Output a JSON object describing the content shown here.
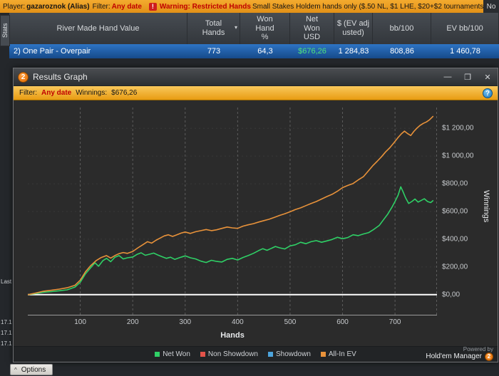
{
  "top_bar": {
    "player_label": "Player:",
    "player_name": "gazaroznok (Alias)",
    "filter_label": "Filter:",
    "filter_value": "Any date",
    "warning_icon": "!",
    "warning_title": "Warning: Restricted Hands",
    "warning_text": "Small Stakes Holdem hands only ($.50 NL, $1 LHE, $20+$2 tournaments).  No",
    "corner_text": "No"
  },
  "left_rail": {
    "stats_tab": "Stats",
    "last_label": "Last",
    "log_items": [
      "17.1",
      "17.1",
      "17.1"
    ]
  },
  "table": {
    "columns": [
      "River Made Hand Value",
      "Total Hands",
      "Won Hand %",
      "Net Won USD",
      "$ (EV adjusted)",
      "bb/100",
      "EV bb/100"
    ],
    "sort_icon": "▾",
    "selected_row": {
      "label": "2) One Pair - Overpair",
      "total_hands": "773",
      "won_hand_pct": "64,3",
      "net_won_usd": "$676,26",
      "ev_adjusted": "1 284,83",
      "bb_100": "808,86",
      "ev_bb_100": "1 460,78"
    }
  },
  "window": {
    "title": "Results Graph",
    "logo": "2",
    "buttons": {
      "minimize": "—",
      "maximize": "❒",
      "close": "✕"
    },
    "filter_bar": {
      "filter_label": "Filter:",
      "filter_value": "Any date",
      "winnings_label": "Winnings:",
      "winnings_value": "$676,26",
      "help": "?"
    },
    "footer": {
      "powered_by": "Powered by",
      "brand": "Hold'em Manager",
      "brand_logo": "2"
    }
  },
  "bottom_bar": {
    "collapse": "^",
    "options_label": "Options"
  },
  "chart_data": {
    "type": "line",
    "xlabel": "Hands",
    "ylabel": "Winnings",
    "xlim": [
      0,
      780
    ],
    "ylim": [
      -150,
      1350
    ],
    "x_ticks": [
      100,
      200,
      300,
      400,
      500,
      600,
      700
    ],
    "y_ticks": [
      0,
      200,
      400,
      600,
      800,
      1000,
      1200
    ],
    "y_tick_labels": [
      "$0,00",
      "$200,00",
      "$400,00",
      "$600,00",
      "$800,00",
      "$1 000,00",
      "$1 200,00"
    ],
    "grid": true,
    "legend_position": "bottom",
    "series": [
      {
        "name": "Net Won",
        "color": "#2fd066",
        "points": [
          [
            0,
            0
          ],
          [
            15,
            8
          ],
          [
            30,
            18
          ],
          [
            45,
            22
          ],
          [
            60,
            28
          ],
          [
            75,
            35
          ],
          [
            90,
            55
          ],
          [
            100,
            90
          ],
          [
            110,
            150
          ],
          [
            120,
            195
          ],
          [
            128,
            230
          ],
          [
            135,
            205
          ],
          [
            143,
            245
          ],
          [
            150,
            262
          ],
          [
            158,
            238
          ],
          [
            166,
            270
          ],
          [
            174,
            282
          ],
          [
            182,
            258
          ],
          [
            190,
            266
          ],
          [
            200,
            272
          ],
          [
            208,
            290
          ],
          [
            216,
            302
          ],
          [
            224,
            284
          ],
          [
            232,
            292
          ],
          [
            240,
            300
          ],
          [
            248,
            286
          ],
          [
            256,
            274
          ],
          [
            264,
            262
          ],
          [
            272,
            270
          ],
          [
            280,
            255
          ],
          [
            290,
            268
          ],
          [
            300,
            280
          ],
          [
            310,
            266
          ],
          [
            320,
            258
          ],
          [
            330,
            242
          ],
          [
            340,
            232
          ],
          [
            350,
            248
          ],
          [
            360,
            240
          ],
          [
            370,
            236
          ],
          [
            380,
            255
          ],
          [
            390,
            262
          ],
          [
            400,
            250
          ],
          [
            410,
            268
          ],
          [
            420,
            282
          ],
          [
            430,
            298
          ],
          [
            440,
            318
          ],
          [
            448,
            332
          ],
          [
            456,
            320
          ],
          [
            464,
            334
          ],
          [
            472,
            348
          ],
          [
            480,
            338
          ],
          [
            490,
            330
          ],
          [
            500,
            352
          ],
          [
            510,
            360
          ],
          [
            520,
            378
          ],
          [
            530,
            368
          ],
          [
            540,
            382
          ],
          [
            550,
            390
          ],
          [
            560,
            378
          ],
          [
            570,
            388
          ],
          [
            580,
            398
          ],
          [
            590,
            414
          ],
          [
            600,
            404
          ],
          [
            610,
            412
          ],
          [
            620,
            432
          ],
          [
            630,
            426
          ],
          [
            640,
            438
          ],
          [
            650,
            448
          ],
          [
            660,
            472
          ],
          [
            670,
            500
          ],
          [
            678,
            540
          ],
          [
            686,
            580
          ],
          [
            694,
            630
          ],
          [
            700,
            672
          ],
          [
            706,
            718
          ],
          [
            711,
            778
          ],
          [
            715,
            745
          ],
          [
            720,
            700
          ],
          [
            726,
            658
          ],
          [
            732,
            672
          ],
          [
            738,
            690
          ],
          [
            744,
            668
          ],
          [
            750,
            680
          ],
          [
            756,
            692
          ],
          [
            762,
            672
          ],
          [
            768,
            664
          ],
          [
            773,
            680
          ]
        ]
      },
      {
        "name": "All-In EV",
        "color": "#e8923a",
        "points": [
          [
            0,
            0
          ],
          [
            15,
            12
          ],
          [
            30,
            25
          ],
          [
            45,
            32
          ],
          [
            60,
            40
          ],
          [
            75,
            50
          ],
          [
            90,
            68
          ],
          [
            100,
            105
          ],
          [
            110,
            165
          ],
          [
            120,
            210
          ],
          [
            130,
            245
          ],
          [
            140,
            268
          ],
          [
            150,
            282
          ],
          [
            158,
            264
          ],
          [
            166,
            282
          ],
          [
            174,
            296
          ],
          [
            182,
            304
          ],
          [
            190,
            298
          ],
          [
            200,
            312
          ],
          [
            210,
            338
          ],
          [
            220,
            362
          ],
          [
            228,
            382
          ],
          [
            236,
            372
          ],
          [
            244,
            392
          ],
          [
            252,
            408
          ],
          [
            260,
            424
          ],
          [
            268,
            432
          ],
          [
            276,
            420
          ],
          [
            284,
            432
          ],
          [
            292,
            444
          ],
          [
            300,
            452
          ],
          [
            310,
            442
          ],
          [
            320,
            454
          ],
          [
            330,
            462
          ],
          [
            340,
            470
          ],
          [
            350,
            462
          ],
          [
            360,
            468
          ],
          [
            370,
            478
          ],
          [
            380,
            488
          ],
          [
            390,
            482
          ],
          [
            400,
            478
          ],
          [
            410,
            494
          ],
          [
            420,
            504
          ],
          [
            430,
            512
          ],
          [
            440,
            524
          ],
          [
            450,
            534
          ],
          [
            460,
            544
          ],
          [
            470,
            558
          ],
          [
            480,
            572
          ],
          [
            490,
            584
          ],
          [
            500,
            598
          ],
          [
            510,
            614
          ],
          [
            520,
            626
          ],
          [
            530,
            642
          ],
          [
            540,
            658
          ],
          [
            550,
            672
          ],
          [
            560,
            690
          ],
          [
            570,
            708
          ],
          [
            580,
            724
          ],
          [
            590,
            746
          ],
          [
            600,
            772
          ],
          [
            610,
            788
          ],
          [
            620,
            802
          ],
          [
            630,
            828
          ],
          [
            640,
            852
          ],
          [
            650,
            896
          ],
          [
            658,
            932
          ],
          [
            666,
            962
          ],
          [
            674,
            994
          ],
          [
            682,
            1030
          ],
          [
            690,
            1060
          ],
          [
            698,
            1096
          ],
          [
            706,
            1134
          ],
          [
            712,
            1160
          ],
          [
            718,
            1180
          ],
          [
            724,
            1162
          ],
          [
            730,
            1148
          ],
          [
            736,
            1178
          ],
          [
            742,
            1202
          ],
          [
            748,
            1222
          ],
          [
            754,
            1236
          ],
          [
            760,
            1246
          ],
          [
            766,
            1262
          ],
          [
            773,
            1288
          ]
        ]
      }
    ],
    "legend": [
      {
        "label": "Net Won",
        "color": "#2fd066"
      },
      {
        "label": "Non Showdown",
        "color": "#e2534a"
      },
      {
        "label": "Showdown",
        "color": "#4da4dc"
      },
      {
        "label": "All-In EV",
        "color": "#e8923a"
      }
    ]
  }
}
